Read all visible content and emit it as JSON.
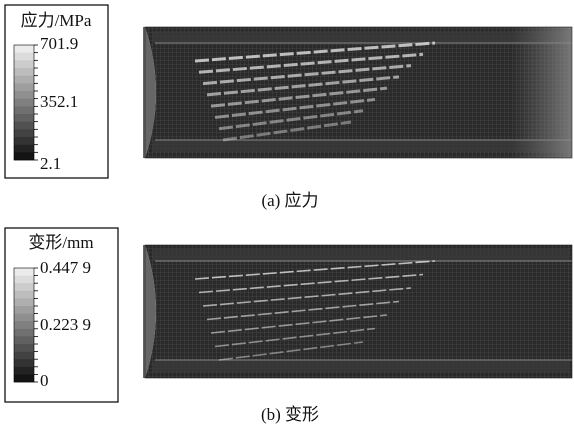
{
  "panels": [
    {
      "legend_title": "应力/MPa",
      "tick_labels": [
        "701.9",
        "352.1",
        "2.1"
      ],
      "caption": "(a)  应力"
    },
    {
      "legend_title": "变形/mm",
      "tick_labels": [
        "0.447 9",
        "0.223 9",
        "0"
      ],
      "caption": "(b)  变形"
    }
  ]
}
